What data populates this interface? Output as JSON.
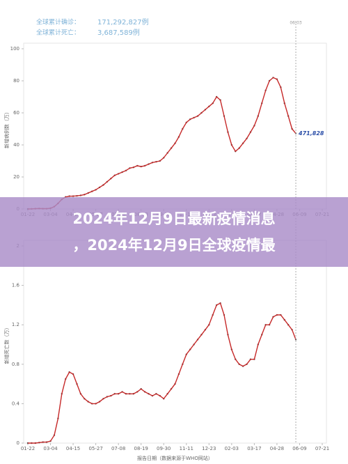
{
  "overlay": {
    "lines": [
      "2024年12月9日最新疫情消息",
      "，2024年12月9日全球疫情最"
    ]
  },
  "chart_data": [
    {
      "type": "line",
      "y_label": "新增病例数（万）",
      "legend_text": [
        [
          "全球累计确诊：",
          "171,292,827例"
        ],
        [
          "全球累计死亡：",
          "3,687,589例"
        ]
      ],
      "annotations": [
        "471,828",
        "06-03"
      ],
      "color": "#c62828",
      "ylim": [
        0,
        100
      ],
      "yticks": [
        0,
        20,
        40,
        60,
        80,
        100
      ],
      "categories": [
        "01-22",
        null,
        null,
        null,
        null,
        null,
        "03-04",
        null,
        null,
        null,
        null,
        null,
        "04-15",
        null,
        null,
        null,
        null,
        null,
        "05-27",
        null,
        null,
        null,
        null,
        null,
        "07-08",
        null,
        null,
        null,
        null,
        null,
        "08-19",
        null,
        null,
        null,
        null,
        null,
        "09-30",
        null,
        null,
        null,
        null,
        null,
        "11-11",
        null,
        null,
        null,
        null,
        null,
        "12-23",
        null,
        null,
        null,
        null,
        null,
        "02-03",
        null,
        null,
        null,
        null,
        null,
        "03-17",
        null,
        null,
        null,
        null,
        null,
        "04-28",
        null,
        null,
        null,
        null,
        null,
        "06-09",
        null,
        null,
        null,
        null,
        null,
        "07-21"
      ],
      "values": [
        0,
        0.1,
        0.2,
        0.3,
        0.2,
        0.2,
        0.5,
        1.5,
        3.5,
        6,
        7.5,
        8,
        8,
        8.2,
        8.5,
        9,
        10,
        11,
        12,
        13.5,
        15,
        17,
        19,
        21,
        22,
        23,
        24,
        25.5,
        26,
        27,
        26.5,
        27,
        28,
        29,
        29.5,
        30,
        32,
        35,
        38,
        41,
        45,
        50,
        54,
        56,
        57,
        58,
        60,
        62,
        64,
        66,
        70,
        68,
        58,
        48,
        40,
        36,
        38,
        41,
        44,
        48,
        52,
        58,
        66,
        74,
        80,
        82,
        81,
        76,
        66,
        58,
        50,
        47.2,
        null,
        null,
        null,
        null,
        null,
        null,
        null
      ]
    },
    {
      "type": "line",
      "y_label": "新增死亡数（万）",
      "x_label": "报告日期（数据来源于WHO网站）",
      "color": "#c62828",
      "ylim": [
        0,
        2
      ],
      "yticks": [
        0,
        0.4,
        0.8,
        1.2,
        1.6,
        2
      ],
      "categories": [
        "01-22",
        null,
        null,
        null,
        null,
        null,
        "03-04",
        null,
        null,
        null,
        null,
        null,
        "04-15",
        null,
        null,
        null,
        null,
        null,
        "05-27",
        null,
        null,
        null,
        null,
        null,
        "07-08",
        null,
        null,
        null,
        null,
        null,
        "08-19",
        null,
        null,
        null,
        null,
        null,
        "09-30",
        null,
        null,
        null,
        null,
        null,
        "11-11",
        null,
        null,
        null,
        null,
        null,
        "12-23",
        null,
        null,
        null,
        null,
        null,
        "02-03",
        null,
        null,
        null,
        null,
        null,
        "03-17",
        null,
        null,
        null,
        null,
        null,
        "04-28",
        null,
        null,
        null,
        null,
        null,
        "06-09",
        null,
        null,
        null,
        null,
        null,
        "07-21"
      ],
      "values": [
        0,
        0,
        0,
        0.005,
        0.01,
        0.01,
        0.02,
        0.08,
        0.25,
        0.5,
        0.65,
        0.72,
        0.7,
        0.6,
        0.5,
        0.45,
        0.42,
        0.4,
        0.4,
        0.42,
        0.45,
        0.47,
        0.48,
        0.5,
        0.5,
        0.52,
        0.5,
        0.5,
        0.5,
        0.52,
        0.55,
        0.52,
        0.5,
        0.48,
        0.5,
        0.48,
        0.45,
        0.5,
        0.55,
        0.6,
        0.7,
        0.8,
        0.9,
        0.95,
        1,
        1.05,
        1.1,
        1.15,
        1.2,
        1.3,
        1.4,
        1.42,
        1.3,
        1.1,
        0.95,
        0.85,
        0.8,
        0.78,
        0.8,
        0.85,
        0.85,
        1,
        1.1,
        1.2,
        1.2,
        1.28,
        1.3,
        1.3,
        1.25,
        1.2,
        1.15,
        1.05,
        null,
        null,
        null,
        null,
        null,
        null,
        null
      ]
    }
  ]
}
